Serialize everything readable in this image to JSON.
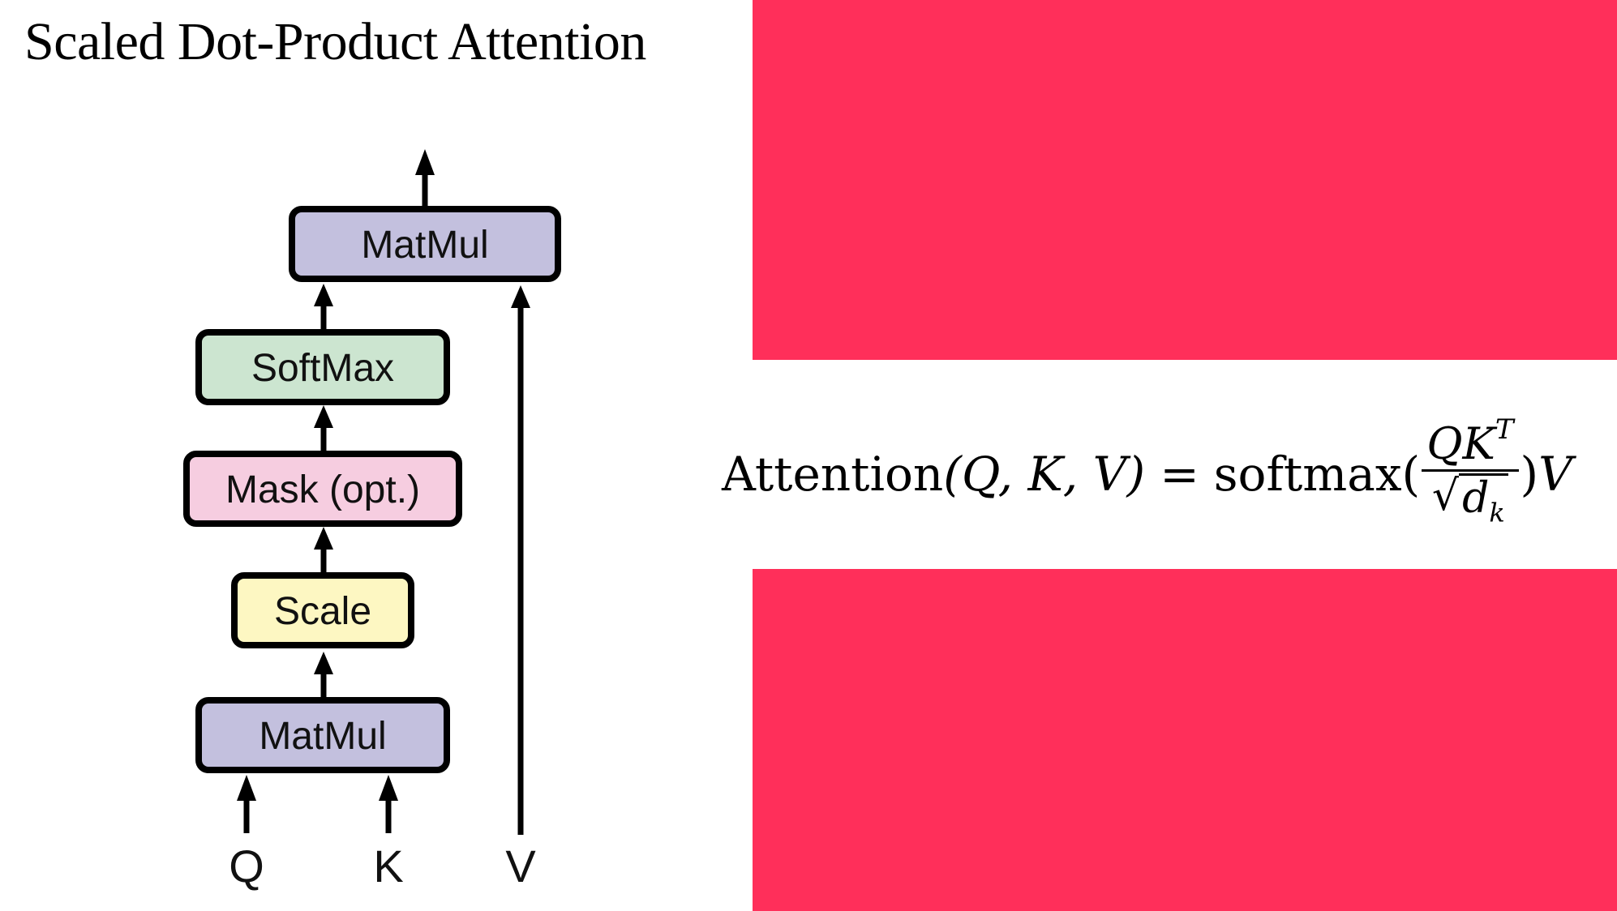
{
  "header": {
    "title": "Scaled Dot-Product Attention"
  },
  "colors": {
    "accent_block": "#ff2f5a",
    "matmul": "#c3c0de",
    "softmax": "#cce5d0",
    "mask": "#f6cde0",
    "scale": "#fdf7c2",
    "stroke": "#000000"
  },
  "diagram": {
    "blocks": {
      "matmul_top": "MatMul",
      "softmax": "SoftMax",
      "mask": "Mask (opt.)",
      "scale": "Scale",
      "matmul_bottom": "MatMul"
    },
    "inputs": {
      "q": "Q",
      "k": "K",
      "v": "V"
    }
  },
  "formula": {
    "lhs": "Attention",
    "args": "(Q, K, V)",
    "equals": "=",
    "fn": "softmax",
    "open": "(",
    "numerator": "QK",
    "numerator_sup": "T",
    "radical": "√",
    "denominator": "d",
    "denominator_sub": "k",
    "close": ")",
    "tail": "V"
  }
}
